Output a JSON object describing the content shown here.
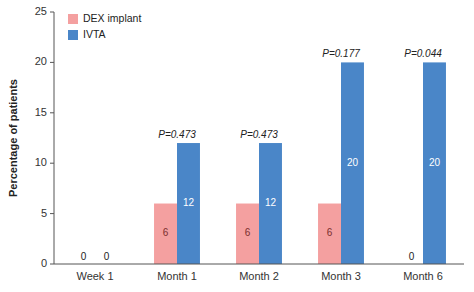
{
  "chart_data": {
    "type": "bar",
    "categories": [
      "Week 1",
      "Month 1",
      "Month 2",
      "Month 3",
      "Month 6"
    ],
    "series": [
      {
        "name": "DEX implant",
        "color": "#F4A0A0",
        "values": [
          0,
          6,
          6,
          6,
          0
        ]
      },
      {
        "name": "IVTA",
        "color": "#4A86C8",
        "values": [
          0,
          12,
          12,
          20,
          20
        ]
      }
    ],
    "ylabel": "Percentage of patients",
    "ylim": [
      0,
      25
    ],
    "yticks": [
      0,
      5,
      10,
      15,
      20,
      25
    ],
    "annotations": [
      null,
      "P=0.473",
      "P=0.473",
      "P=0.177",
      "P=0.044"
    ],
    "data_labels": true,
    "grid": false,
    "legend": "top-left"
  }
}
